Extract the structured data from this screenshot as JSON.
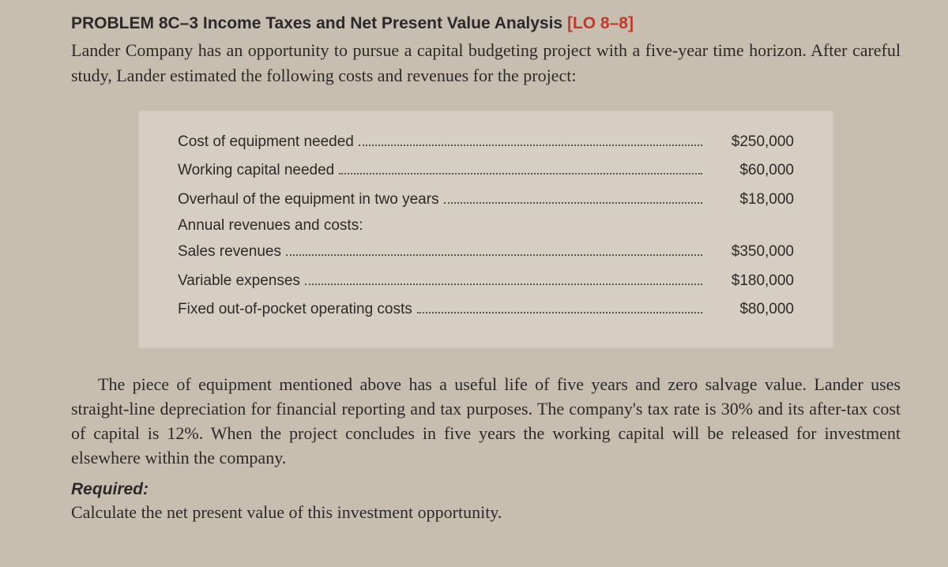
{
  "header": {
    "problem_no": "PROBLEM 8C–3",
    "title": "Income Taxes and Net Present Value Analysis",
    "lo": "[LO 8–8]"
  },
  "intro": "Lander Company has an opportunity to pursue a capital budgeting project with a five-year time horizon. After careful study, Lander estimated the following costs and revenues for the project:",
  "data": {
    "rows": [
      {
        "label": "Cost of equipment needed",
        "value": "$250,000"
      },
      {
        "label": "Working capital needed",
        "value": "$60,000"
      },
      {
        "label": "Overhaul of the equipment in two years",
        "value": "$18,000"
      }
    ],
    "subheader": "Annual revenues and costs:",
    "rows2": [
      {
        "label": "Sales revenues",
        "value": "$350,000"
      },
      {
        "label": "Variable expenses",
        "value": "$180,000"
      },
      {
        "label": "Fixed out-of-pocket operating costs",
        "value": "$80,000"
      }
    ]
  },
  "body": "The piece of equipment mentioned above has a useful life of five years and zero salvage value. Lander uses straight-line depreciation for financial reporting and tax purposes. The company's tax rate is 30% and its after-tax cost of capital is 12%. When the project concludes in five years the working capital will be released for investment elsewhere within the company.",
  "required": {
    "label": "Required:",
    "text": "Calculate the net present value of this investment opportunity."
  }
}
